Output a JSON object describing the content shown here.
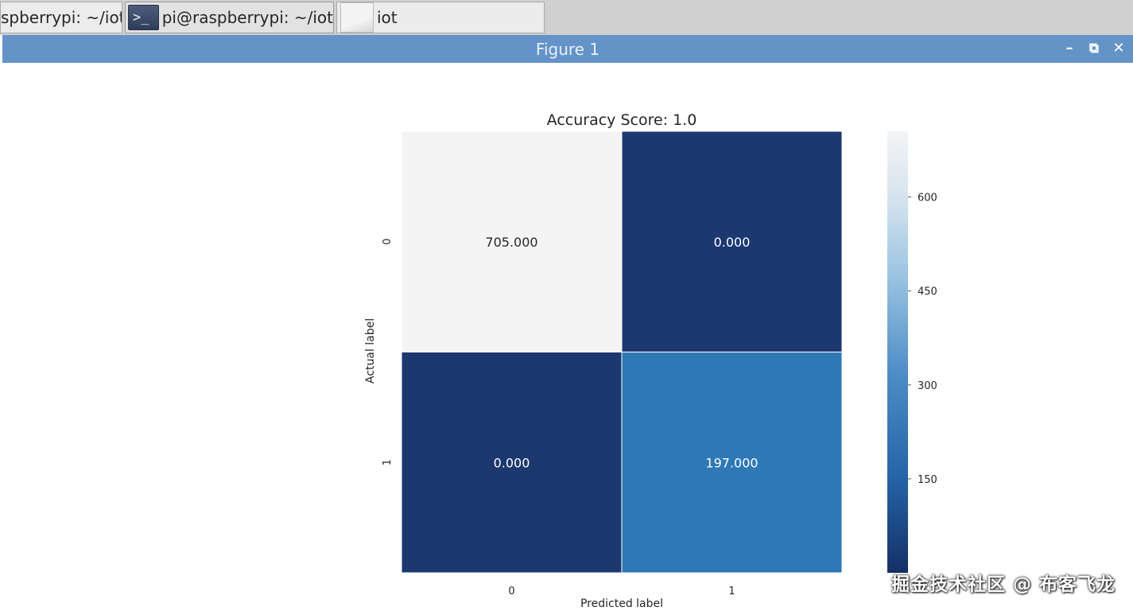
{
  "taskbar": {
    "tasks": [
      {
        "label": "spberrypi: ~/iot",
        "icon": ""
      },
      {
        "label": "pi@raspberrypi: ~/iot",
        "icon": "terminal-icon"
      },
      {
        "label": "iot",
        "icon": "folder-icon"
      }
    ]
  },
  "window": {
    "title": "Figure 1",
    "controls": {
      "minimize": "–",
      "restore": "⧉",
      "close": "✕"
    }
  },
  "chart_data": {
    "type": "heatmap",
    "title": "Accuracy Score: 1.0",
    "xlabel": "Predicted label",
    "ylabel": "Actual label",
    "x_tick_labels": [
      "0",
      "1"
    ],
    "y_tick_labels": [
      "0",
      "1"
    ],
    "matrix": [
      [
        705,
        0
      ],
      [
        0,
        197
      ]
    ],
    "cell_labels": [
      [
        "705.000",
        "0.000"
      ],
      [
        "0.000",
        "197.000"
      ]
    ],
    "colormap": "Blues_r",
    "colorbar": {
      "min": 0,
      "max": 705,
      "tick_values": [
        150,
        300,
        450,
        600
      ],
      "tick_labels": [
        "150",
        "300",
        "450",
        "600"
      ]
    },
    "grid": false,
    "colors": {
      "low": "#1c3870",
      "mid": "#6ea8d5",
      "high": "#f4f4f4"
    }
  },
  "watermark": "掘金技术社区 @ 布客飞龙"
}
